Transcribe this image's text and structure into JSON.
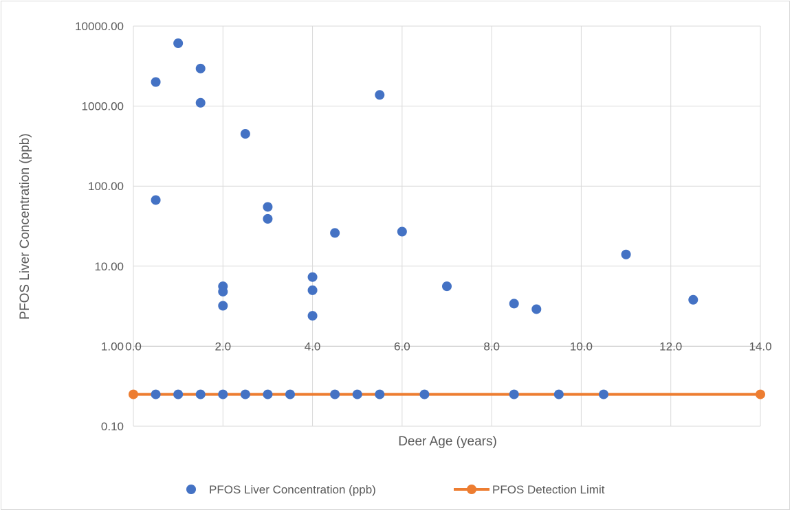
{
  "chart_data": {
    "type": "scatter",
    "title": "",
    "xlabel": "Deer Age (years)",
    "ylabel": "PFOS Liver Concentration (ppb)",
    "xlim": [
      0,
      14
    ],
    "ylim": [
      0.1,
      10000
    ],
    "y_scale": "log",
    "grid": true,
    "legend_position": "bottom",
    "x_ticks": [
      "0.0",
      "2.0",
      "4.0",
      "6.0",
      "8.0",
      "10.0",
      "12.0",
      "14.0"
    ],
    "y_ticks": [
      "0.10",
      "1.00",
      "10.00",
      "100.00",
      "1000.00",
      "10000.00"
    ],
    "series": [
      {
        "name": "PFOS Liver Concentration (ppb)",
        "type": "scatter",
        "color": "#4472C4",
        "points": [
          {
            "x": 0.5,
            "y": 2000
          },
          {
            "x": 0.5,
            "y": 67
          },
          {
            "x": 1.0,
            "y": 6100
          },
          {
            "x": 1.5,
            "y": 2950
          },
          {
            "x": 1.5,
            "y": 1100
          },
          {
            "x": 2.0,
            "y": 5.6
          },
          {
            "x": 2.0,
            "y": 4.8
          },
          {
            "x": 2.0,
            "y": 3.2
          },
          {
            "x": 2.5,
            "y": 450
          },
          {
            "x": 3.0,
            "y": 55
          },
          {
            "x": 3.0,
            "y": 39
          },
          {
            "x": 4.0,
            "y": 7.3
          },
          {
            "x": 4.0,
            "y": 5.0
          },
          {
            "x": 4.0,
            "y": 2.4
          },
          {
            "x": 4.5,
            "y": 26
          },
          {
            "x": 5.5,
            "y": 1380
          },
          {
            "x": 6.0,
            "y": 27
          },
          {
            "x": 7.0,
            "y": 5.6
          },
          {
            "x": 8.5,
            "y": 3.4
          },
          {
            "x": 9.0,
            "y": 2.9
          },
          {
            "x": 11.0,
            "y": 14
          },
          {
            "x": 12.5,
            "y": 3.8
          },
          {
            "x": 0.5,
            "y": 0.25
          },
          {
            "x": 1.0,
            "y": 0.25
          },
          {
            "x": 1.5,
            "y": 0.25
          },
          {
            "x": 2.0,
            "y": 0.25
          },
          {
            "x": 2.5,
            "y": 0.25
          },
          {
            "x": 3.0,
            "y": 0.25
          },
          {
            "x": 3.5,
            "y": 0.25
          },
          {
            "x": 4.5,
            "y": 0.25
          },
          {
            "x": 5.0,
            "y": 0.25
          },
          {
            "x": 5.5,
            "y": 0.25
          },
          {
            "x": 6.5,
            "y": 0.25
          },
          {
            "x": 8.5,
            "y": 0.25
          },
          {
            "x": 9.5,
            "y": 0.25
          },
          {
            "x": 10.5,
            "y": 0.25
          }
        ]
      },
      {
        "name": "PFOS Detection Limit",
        "type": "line",
        "color": "#ED7D31",
        "points": [
          {
            "x": 0,
            "y": 0.25
          },
          {
            "x": 14,
            "y": 0.25
          }
        ]
      }
    ]
  }
}
